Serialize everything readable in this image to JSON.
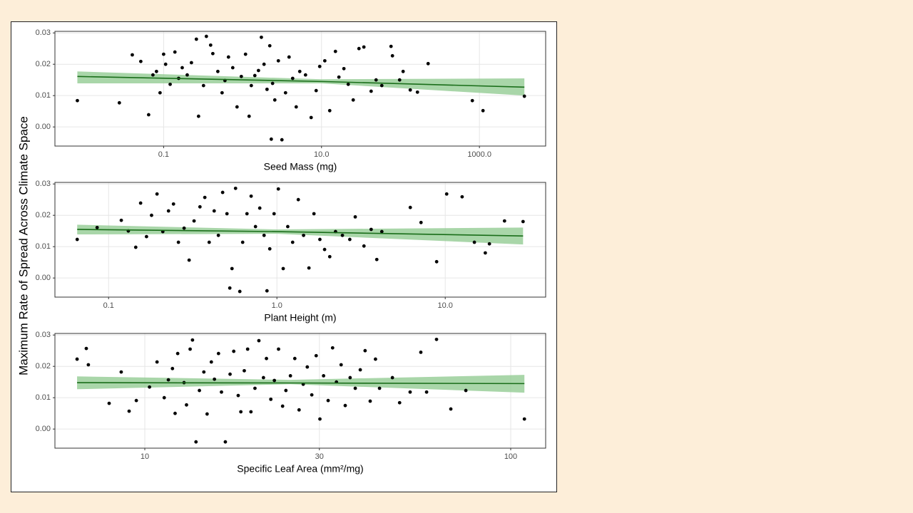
{
  "ylabel": "Maximum Rate of Spread Across Climate Space",
  "chart_data": [
    {
      "type": "scatter",
      "xlabel": "Seed Mass (mg)",
      "log_x": true,
      "grid": true,
      "color": "#000000",
      "xlim": [
        0.0042,
        6900
      ],
      "ylim": [
        -0.0061,
        0.0305
      ],
      "xticks": [
        0.1,
        {
          "value": 10,
          "label": "10.0"
        },
        {
          "value": 1000,
          "label": "1000.0"
        }
      ],
      "yticks": [
        {
          "value": 0,
          "label": "0.00"
        },
        0.01,
        0.02,
        0.03
      ],
      "x": [
        0.00808,
        0.0275,
        0.0401,
        0.0514,
        0.0646,
        0.0732,
        0.0812,
        0.0901,
        0.1,
        0.106,
        0.121,
        0.139,
        0.155,
        0.172,
        0.199,
        0.225,
        0.26,
        0.277,
        0.32,
        0.348,
        0.394,
        0.42,
        0.486,
        0.55,
        0.598,
        0.663,
        0.751,
        0.851,
        0.964,
        1.09,
        1.21,
        1.29,
        1.43,
        1.59,
        1.73,
        1.87,
        2.04,
        2.21,
        2.31,
        2.4,
        2.56,
        2.84,
        3.15,
        3.5,
        3.88,
        4.31,
        4.78,
        5.3,
        6.27,
        7.39,
        8.55,
        9.48,
        11,
        12.7,
        15,
        16.6,
        19.2,
        21.8,
        25.2,
        29.8,
        34.4,
        42.5,
        49.1,
        58,
        75.9,
        79.1,
        97.5,
        108,
        133,
        164,
        224,
        813,
        1110,
        3710
      ],
      "values": [
        0.0084,
        0.0077,
        0.023,
        0.0209,
        0.0039,
        0.0166,
        0.0177,
        0.0109,
        0.0232,
        0.02,
        0.0136,
        0.0239,
        0.0155,
        0.0189,
        0.0166,
        0.0205,
        0.028,
        0.0034,
        0.0132,
        0.0289,
        0.0261,
        0.0234,
        0.0177,
        0.0109,
        0.0148,
        0.0223,
        0.0189,
        0.0064,
        0.0161,
        0.0232,
        0.0034,
        0.0132,
        0.0164,
        0.018,
        0.0286,
        0.02,
        0.012,
        0.0259,
        -0.0039,
        0.0139,
        0.0086,
        0.0211,
        -0.0041,
        0.0109,
        0.0223,
        0.0155,
        0.0064,
        0.0177,
        0.0166,
        0.003,
        0.0116,
        0.0193,
        0.0211,
        0.0052,
        0.0241,
        0.0159,
        0.0186,
        0.0136,
        0.0086,
        0.025,
        0.0255,
        0.0114,
        0.015,
        0.0132,
        0.0257,
        0.0227,
        0.015,
        0.0177,
        0.0118,
        0.0111,
        0.0202,
        0.0084,
        0.0052,
        0.0098
      ],
      "fit": {
        "color": "#1a6e1a",
        "band_color": "#93cc93",
        "x": [
          0.00808,
          10,
          3710
        ],
        "values": [
          0.0161,
          0.0145,
          0.0127
        ],
        "lower": [
          0.0139,
          0.0139,
          0.01
        ],
        "upper": [
          0.0177,
          0.0152,
          0.0155
        ]
      }
    },
    {
      "type": "scatter",
      "xlabel": "Plant Height (m)",
      "log_x": true,
      "grid": true,
      "color": "#000000",
      "xlim": [
        0.048,
        39.5
      ],
      "ylim": [
        -0.0061,
        0.0305
      ],
      "xticks": [
        0.1,
        {
          "value": 1,
          "label": "1.0"
        },
        {
          "value": 10,
          "label": "10.0"
        }
      ],
      "yticks": [
        {
          "value": 0,
          "label": "0.00"
        },
        0.01,
        0.02,
        0.03
      ],
      "x": [
        0.0651,
        0.0855,
        0.119,
        0.131,
        0.145,
        0.155,
        0.168,
        0.18,
        0.194,
        0.21,
        0.227,
        0.243,
        0.26,
        0.281,
        0.301,
        0.322,
        0.349,
        0.373,
        0.396,
        0.424,
        0.449,
        0.476,
        0.505,
        0.525,
        0.541,
        0.568,
        0.602,
        0.626,
        0.664,
        0.703,
        0.746,
        0.791,
        0.839,
        0.873,
        0.907,
        0.962,
        1.02,
        1.09,
        1.16,
        1.24,
        1.34,
        1.44,
        1.55,
        1.66,
        1.8,
        1.92,
        2.06,
        2.23,
        2.45,
        2.71,
        2.92,
        3.29,
        3.63,
        3.92,
        4.2,
        6.2,
        7.18,
        8.89,
        10.2,
        12.6,
        14.9,
        17.3,
        18.3,
        22.5,
        29
      ],
      "values": [
        0.0123,
        0.0161,
        0.0184,
        0.015,
        0.0098,
        0.0239,
        0.0132,
        0.02,
        0.0268,
        0.0148,
        0.0214,
        0.0236,
        0.0114,
        0.0159,
        0.0057,
        0.0182,
        0.0227,
        0.0257,
        0.0114,
        0.0214,
        0.0136,
        0.0273,
        0.0205,
        -0.0032,
        0.003,
        0.0286,
        -0.0043,
        0.0114,
        0.0205,
        0.0261,
        0.0164,
        0.0223,
        0.0136,
        -0.0041,
        0.0093,
        0.0205,
        0.0284,
        0.003,
        0.0164,
        0.0114,
        0.025,
        0.0136,
        0.0032,
        0.0205,
        0.0123,
        0.0091,
        0.0068,
        0.0148,
        0.0136,
        0.0123,
        0.0195,
        0.0102,
        0.0155,
        0.0059,
        0.0148,
        0.0225,
        0.0177,
        0.0052,
        0.0268,
        0.0259,
        0.0114,
        0.008,
        0.0109,
        0.0182,
        0.018
      ],
      "fit": {
        "color": "#1a6e1a",
        "band_color": "#93cc93",
        "x": [
          0.0651,
          1,
          29
        ],
        "values": [
          0.0155,
          0.0148,
          0.0134
        ],
        "lower": [
          0.0139,
          0.0141,
          0.0107
        ],
        "upper": [
          0.017,
          0.0155,
          0.0161
        ]
      }
    },
    {
      "type": "scatter",
      "xlabel": "Specific Leaf Area (mm²/mg)",
      "log_x": true,
      "grid": true,
      "color": "#000000",
      "xlim": [
        5.68,
        124.6
      ],
      "ylim": [
        -0.0061,
        0.0305
      ],
      "xticks": [
        10,
        30,
        100
      ],
      "yticks": [
        {
          "value": 0,
          "label": "0.00"
        },
        0.01,
        0.02,
        0.03
      ],
      "x": [
        6.53,
        6.92,
        7.01,
        7.99,
        8.62,
        9.06,
        9.48,
        10.3,
        10.8,
        11.3,
        11.6,
        11.9,
        12.1,
        12.3,
        12.8,
        13,
        13.3,
        13.5,
        13.8,
        14.1,
        14.5,
        14.8,
        15.2,
        15.5,
        15.9,
        16.2,
        16.6,
        17.1,
        17.5,
        18,
        18.3,
        18.7,
        19.1,
        19.5,
        20,
        20.5,
        21.1,
        21.5,
        22.1,
        22.6,
        23.2,
        23.8,
        24.3,
        25,
        25.7,
        26.4,
        27.1,
        27.8,
        28.6,
        29.4,
        30.1,
        30.8,
        31.7,
        32.6,
        33.4,
        34.4,
        35.3,
        36.4,
        37.6,
        38.8,
        40,
        41.3,
        42.7,
        43.8,
        47.5,
        49.7,
        53.1,
        56.8,
        58.9,
        62.7,
        68.6,
        75.4,
        109
      ],
      "values": [
        0.0223,
        0.0257,
        0.0205,
        0.0082,
        0.0182,
        0.0057,
        0.0091,
        0.0134,
        0.0214,
        0.01,
        0.0157,
        0.0193,
        0.005,
        0.0241,
        0.0148,
        0.0077,
        0.0255,
        0.0284,
        -0.0041,
        0.0123,
        0.0182,
        0.0048,
        0.0214,
        0.0159,
        0.0241,
        0.0118,
        -0.0041,
        0.0175,
        0.0248,
        0.0107,
        0.0055,
        0.0186,
        0.0255,
        0.0055,
        0.013,
        0.0282,
        0.0164,
        0.0225,
        0.0095,
        0.0155,
        0.0255,
        0.0073,
        0.0123,
        0.017,
        0.0225,
        0.0061,
        0.0143,
        0.0198,
        0.0109,
        0.0234,
        0.0032,
        0.017,
        0.0091,
        0.0259,
        0.015,
        0.0205,
        0.0075,
        0.0164,
        0.013,
        0.0189,
        0.025,
        0.0089,
        0.0223,
        0.013,
        0.0164,
        0.0084,
        0.0118,
        0.0245,
        0.0118,
        0.0286,
        0.0064,
        0.0123,
        0.0032
      ],
      "fit": {
        "color": "#1a6e1a",
        "band_color": "#93cc93",
        "x": [
          6.53,
          25,
          109
        ],
        "values": [
          0.0148,
          0.0147,
          0.0145
        ],
        "lower": [
          0.0127,
          0.0143,
          0.0116
        ],
        "upper": [
          0.0168,
          0.0157,
          0.0173
        ]
      }
    }
  ]
}
